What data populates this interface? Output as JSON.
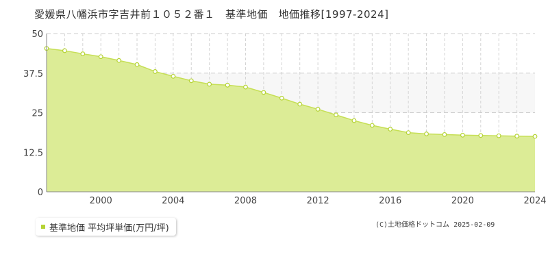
{
  "title": "愛媛県八幡浜市字吉井前１０５２番１　基準地価　地価推移[1997-2024]",
  "legend_label": "基準地価 平均坪単価(万円/坪)",
  "credit": "(C)土地価格ドットコム 2025-02-09",
  "colors": {
    "fill": "#dcec96",
    "line": "#c6df55",
    "point_stroke": "#b5d334",
    "band": "#f7f7f7"
  },
  "chart_data": {
    "type": "area",
    "x": [
      1997,
      1998,
      1999,
      2000,
      2001,
      2002,
      2003,
      2004,
      2005,
      2006,
      2007,
      2008,
      2009,
      2010,
      2011,
      2012,
      2013,
      2014,
      2015,
      2016,
      2017,
      2018,
      2019,
      2020,
      2021,
      2022,
      2023,
      2024
    ],
    "series": [
      {
        "name": "基準地価 平均坪単価(万円/坪)",
        "values": [
          45.3,
          44.6,
          43.6,
          42.7,
          41.5,
          40.2,
          38.0,
          36.5,
          35.1,
          34.0,
          33.7,
          33.1,
          31.4,
          29.6,
          27.7,
          26.1,
          24.3,
          22.5,
          21.0,
          19.8,
          18.7,
          18.3,
          18.1,
          17.9,
          17.8,
          17.7,
          17.6,
          17.5
        ]
      }
    ],
    "yticks": [
      "0",
      "12.5",
      "25",
      "37.5",
      "50"
    ],
    "xtick_labels": [
      "2000",
      "2004",
      "2008",
      "2012",
      "2016",
      "2020",
      "2024"
    ],
    "xticks": [
      2000,
      2004,
      2008,
      2012,
      2016,
      2020,
      2024
    ],
    "xlim": [
      1997,
      2024
    ],
    "ylim": [
      0,
      50
    ],
    "grid": true,
    "legend_position": "bottom-left"
  }
}
